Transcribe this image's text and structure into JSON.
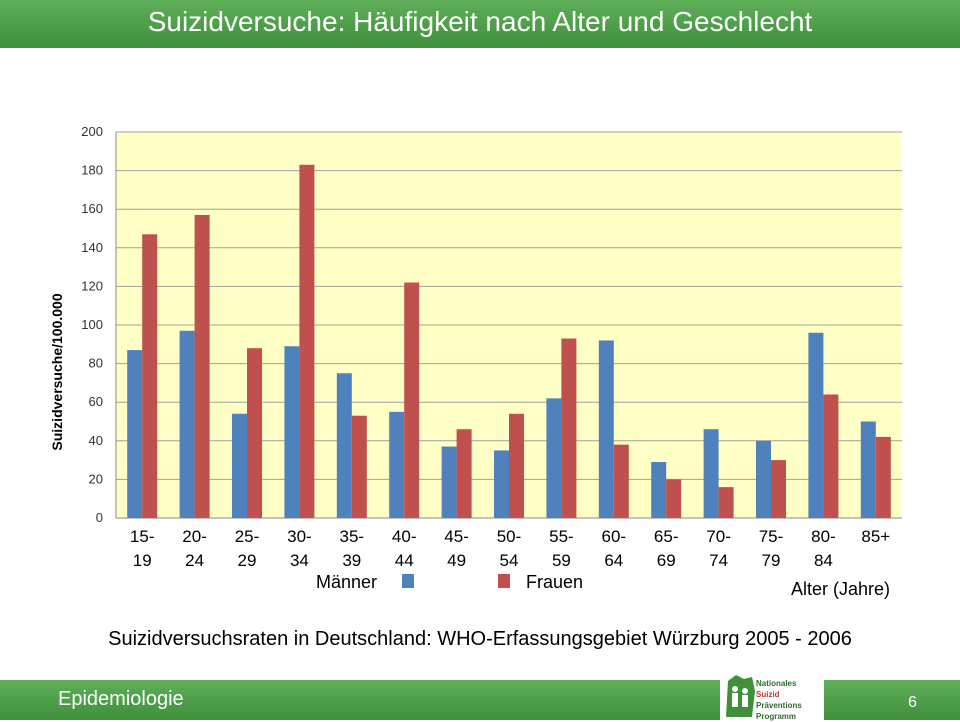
{
  "header": {
    "title": "Suizidversuche: Häufigkeit nach Alter und Geschlecht"
  },
  "footer": {
    "section": "Epidemiologie",
    "page_number": "6"
  },
  "logo": {
    "line1": "Nationales",
    "line2a": "Suizid ",
    "line2b": "Präventions",
    "line3": "Programm"
  },
  "caption": "Suizidversuchsraten in Deutschland: WHO-Erfassungsgebiet Würzburg 2005 - 2006",
  "colors": {
    "header_green": "#4a9d45",
    "plot_bg": "#ffffc6",
    "men": "#4f81bd",
    "women": "#c0504d"
  },
  "chart_data": {
    "type": "bar",
    "title": "",
    "xlabel": "Alter (Jahre)",
    "ylabel": "Suizidversuche/100.000",
    "ylim": [
      0,
      200
    ],
    "yticks": [
      "0",
      "20",
      "40",
      "60",
      "80",
      "100",
      "120",
      "140",
      "160",
      "180",
      "200"
    ],
    "grid": true,
    "legend_position": "bottom",
    "categories": [
      [
        "15-",
        "19"
      ],
      [
        "20-",
        "24"
      ],
      [
        "25-",
        "29"
      ],
      [
        "30-",
        "34"
      ],
      [
        "35-",
        "39"
      ],
      [
        "40-",
        "44"
      ],
      [
        "45-",
        "49"
      ],
      [
        "50-",
        "54"
      ],
      [
        "55-",
        "59"
      ],
      [
        "60-",
        "64"
      ],
      [
        "65-",
        "69"
      ],
      [
        "70-",
        "74"
      ],
      [
        "75-",
        "79"
      ],
      [
        "80-",
        "84"
      ],
      [
        "85+",
        ""
      ]
    ],
    "series": [
      {
        "name": "Männer",
        "color": "#4f81bd",
        "values": [
          87,
          97,
          54,
          89,
          75,
          55,
          37,
          35,
          62,
          92,
          29,
          46,
          40,
          96,
          50
        ]
      },
      {
        "name": "Frauen",
        "color": "#c0504d",
        "values": [
          147,
          157,
          88,
          183,
          53,
          122,
          46,
          54,
          93,
          38,
          20,
          16,
          30,
          64,
          42
        ]
      }
    ]
  }
}
